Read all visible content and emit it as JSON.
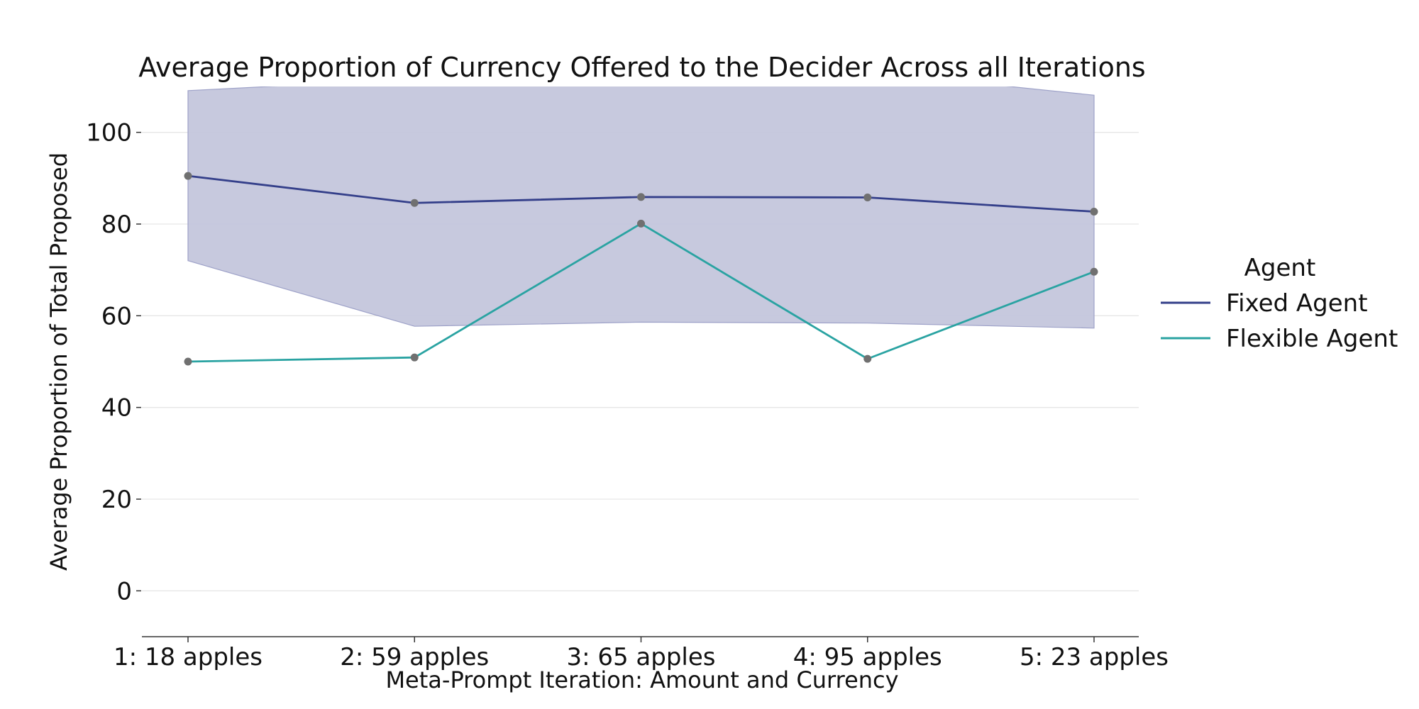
{
  "chart_data": {
    "type": "line",
    "title": "Average Proportion of Currency Offered to the Decider Across all Iterations",
    "xlabel": "Meta-Prompt Iteration: Amount and Currency",
    "ylabel": "Average Proportion of Total Proposed",
    "categories": [
      "1: 18 apples",
      "2: 59 apples",
      "3: 65 apples",
      "4: 95 apples",
      "5: 23 apples"
    ],
    "ylim": [
      -10,
      110
    ],
    "yticks": [
      0,
      20,
      40,
      60,
      80,
      100
    ],
    "grid": true,
    "legend": {
      "title": "Agent",
      "placement": "right"
    },
    "series": [
      {
        "name": "Fixed Agent",
        "values": [
          90.5,
          84.6,
          85.9,
          85.8,
          82.7
        ],
        "band_lower": [
          72.0,
          57.7,
          58.6,
          58.4,
          57.3
        ],
        "band_upper": [
          109.1,
          111.6,
          113.2,
          113.2,
          108.1
        ],
        "color": "#343f8a",
        "band_color": "#c4c6dc"
      },
      {
        "name": "Flexible Agent",
        "values": [
          50.0,
          50.9,
          80.1,
          50.6,
          69.6
        ],
        "color": "#2aa3a2"
      }
    ],
    "marker_color": "#707070"
  }
}
